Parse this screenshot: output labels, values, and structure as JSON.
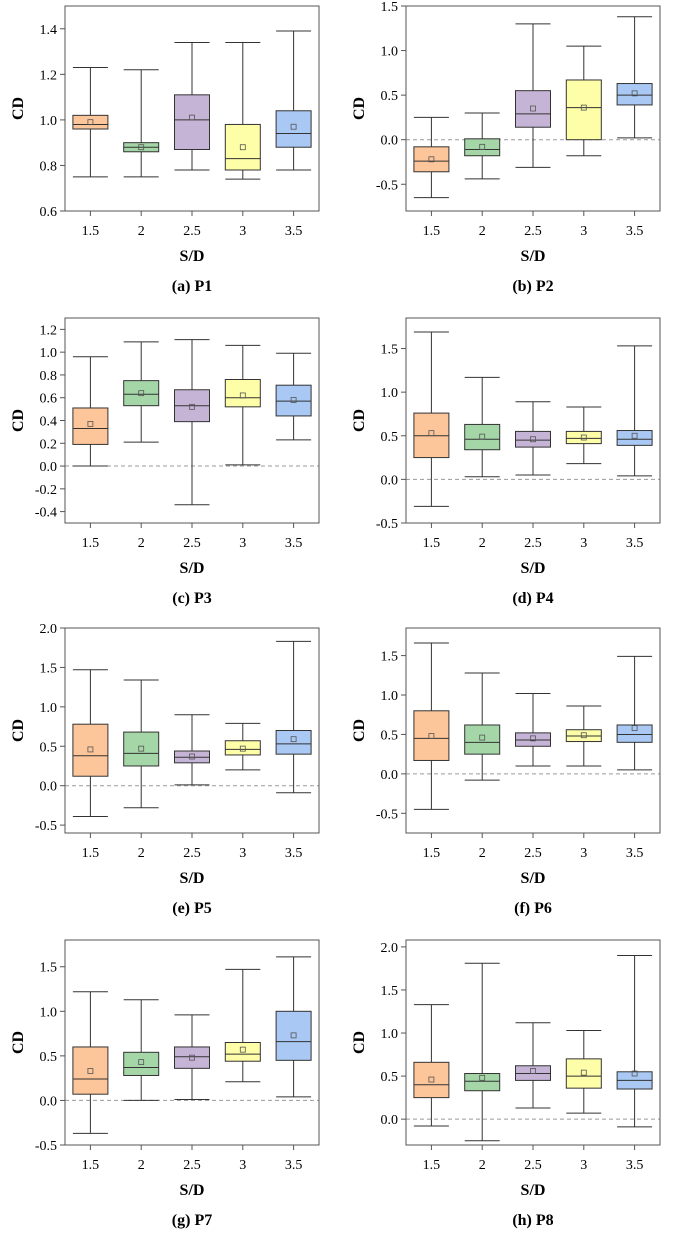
{
  "colors": [
    "#FDC59A",
    "#A5D6A7",
    "#C6B4D6",
    "#FEFEA8",
    "#A9C8F3"
  ],
  "chart_data": [
    {
      "type": "box",
      "title": "",
      "caption": "(a) P1",
      "xlabel": "S/D",
      "ylabel": "CD",
      "categories": [
        "1.5",
        "2",
        "2.5",
        "3",
        "3.5"
      ],
      "ylim": [
        0.6,
        1.5
      ],
      "yticks": [
        0.6,
        0.8,
        1.0,
        1.2,
        1.4
      ],
      "ytick_labels": [
        "0.6",
        "0.8",
        "1.0",
        "1.2",
        "1.4"
      ],
      "zero_line": false,
      "boxes": [
        {
          "min": 0.75,
          "q1": 0.96,
          "median": 0.98,
          "q3": 1.02,
          "max": 1.23,
          "mean": 0.99
        },
        {
          "min": 0.75,
          "q1": 0.86,
          "median": 0.88,
          "q3": 0.9,
          "max": 1.22,
          "mean": 0.88
        },
        {
          "min": 0.78,
          "q1": 0.87,
          "median": 1.0,
          "q3": 1.11,
          "max": 1.34,
          "mean": 1.01
        },
        {
          "min": 0.74,
          "q1": 0.78,
          "median": 0.83,
          "q3": 0.98,
          "max": 1.34,
          "mean": 0.88
        },
        {
          "min": 0.78,
          "q1": 0.88,
          "median": 0.94,
          "q3": 1.04,
          "max": 1.39,
          "mean": 0.97
        }
      ]
    },
    {
      "type": "box",
      "title": "",
      "caption": "(b) P2",
      "xlabel": "S/D",
      "ylabel": "CD",
      "categories": [
        "1.5",
        "2",
        "2.5",
        "3",
        "3.5"
      ],
      "ylim": [
        -0.8,
        1.5
      ],
      "yticks": [
        -0.5,
        0.0,
        0.5,
        1.0,
        1.5
      ],
      "ytick_labels": [
        "-0.5",
        "0.0",
        "0.5",
        "1.0",
        "1.5"
      ],
      "zero_line": true,
      "boxes": [
        {
          "min": -0.65,
          "q1": -0.36,
          "median": -0.24,
          "q3": -0.08,
          "max": 0.25,
          "mean": -0.22
        },
        {
          "min": -0.44,
          "q1": -0.18,
          "median": -0.11,
          "q3": 0.01,
          "max": 0.3,
          "mean": -0.08
        },
        {
          "min": -0.31,
          "q1": 0.14,
          "median": 0.29,
          "q3": 0.55,
          "max": 1.3,
          "mean": 0.35
        },
        {
          "min": -0.18,
          "q1": 0.0,
          "median": 0.36,
          "q3": 0.67,
          "max": 1.05,
          "mean": 0.36
        },
        {
          "min": 0.02,
          "q1": 0.39,
          "median": 0.5,
          "q3": 0.63,
          "max": 1.38,
          "mean": 0.52
        }
      ]
    },
    {
      "type": "box",
      "title": "",
      "caption": "(c) P3",
      "xlabel": "S/D",
      "ylabel": "CD",
      "categories": [
        "1.5",
        "2",
        "2.5",
        "3",
        "3.5"
      ],
      "ylim": [
        -0.5,
        1.3
      ],
      "yticks": [
        -0.4,
        -0.2,
        0.0,
        0.2,
        0.4,
        0.6,
        0.8,
        1.0,
        1.2
      ],
      "ytick_labels": [
        "-0.4",
        "-0.2",
        "0.0",
        "0.2",
        "0.4",
        "0.6",
        "0.8",
        "1.0",
        "1.2"
      ],
      "zero_line": true,
      "boxes": [
        {
          "min": 0.0,
          "q1": 0.19,
          "median": 0.33,
          "q3": 0.51,
          "max": 0.96,
          "mean": 0.37
        },
        {
          "min": 0.21,
          "q1": 0.53,
          "median": 0.63,
          "q3": 0.75,
          "max": 1.09,
          "mean": 0.64
        },
        {
          "min": -0.34,
          "q1": 0.39,
          "median": 0.53,
          "q3": 0.67,
          "max": 1.11,
          "mean": 0.52
        },
        {
          "min": 0.01,
          "q1": 0.52,
          "median": 0.6,
          "q3": 0.76,
          "max": 1.06,
          "mean": 0.62
        },
        {
          "min": 0.23,
          "q1": 0.44,
          "median": 0.57,
          "q3": 0.71,
          "max": 0.99,
          "mean": 0.58
        }
      ]
    },
    {
      "type": "box",
      "title": "",
      "caption": "(d) P4",
      "xlabel": "S/D",
      "ylabel": "CD",
      "categories": [
        "1.5",
        "2",
        "2.5",
        "3",
        "3.5"
      ],
      "ylim": [
        -0.5,
        1.85
      ],
      "yticks": [
        -0.5,
        0.0,
        0.5,
        1.0,
        1.5
      ],
      "ytick_labels": [
        "-0.5",
        "0.0",
        "0.5",
        "1.0",
        "1.5"
      ],
      "zero_line": true,
      "boxes": [
        {
          "min": -0.31,
          "q1": 0.25,
          "median": 0.5,
          "q3": 0.76,
          "max": 1.69,
          "mean": 0.53
        },
        {
          "min": 0.03,
          "q1": 0.34,
          "median": 0.46,
          "q3": 0.63,
          "max": 1.17,
          "mean": 0.49
        },
        {
          "min": 0.05,
          "q1": 0.37,
          "median": 0.45,
          "q3": 0.55,
          "max": 0.89,
          "mean": 0.46
        },
        {
          "min": 0.18,
          "q1": 0.41,
          "median": 0.47,
          "q3": 0.55,
          "max": 0.83,
          "mean": 0.48
        },
        {
          "min": 0.04,
          "q1": 0.39,
          "median": 0.46,
          "q3": 0.56,
          "max": 1.53,
          "mean": 0.5
        }
      ]
    },
    {
      "type": "box",
      "title": "",
      "caption": "(e) P5",
      "xlabel": "S/D",
      "ylabel": "CD",
      "categories": [
        "1.5",
        "2",
        "2.5",
        "3",
        "3.5"
      ],
      "ylim": [
        -0.6,
        2.0
      ],
      "yticks": [
        -0.5,
        0.0,
        0.5,
        1.0,
        1.5,
        2.0
      ],
      "ytick_labels": [
        "-0.5",
        "0.0",
        "0.5",
        "1.0",
        "1.5",
        "2.0"
      ],
      "zero_line": true,
      "boxes": [
        {
          "min": -0.39,
          "q1": 0.12,
          "median": 0.38,
          "q3": 0.78,
          "max": 1.47,
          "mean": 0.46
        },
        {
          "min": -0.28,
          "q1": 0.25,
          "median": 0.41,
          "q3": 0.68,
          "max": 1.34,
          "mean": 0.47
        },
        {
          "min": 0.01,
          "q1": 0.29,
          "median": 0.36,
          "q3": 0.44,
          "max": 0.9,
          "mean": 0.37
        },
        {
          "min": 0.2,
          "q1": 0.39,
          "median": 0.46,
          "q3": 0.57,
          "max": 0.79,
          "mean": 0.47
        },
        {
          "min": -0.09,
          "q1": 0.4,
          "median": 0.53,
          "q3": 0.7,
          "max": 1.83,
          "mean": 0.59
        }
      ]
    },
    {
      "type": "box",
      "title": "",
      "caption": "(f) P6",
      "xlabel": "S/D",
      "ylabel": "CD",
      "categories": [
        "1.5",
        "2",
        "2.5",
        "3",
        "3.5"
      ],
      "ylim": [
        -0.75,
        1.85
      ],
      "yticks": [
        -0.5,
        0.0,
        0.5,
        1.0,
        1.5
      ],
      "ytick_labels": [
        "-0.5",
        "0.0",
        "0.5",
        "1.0",
        "1.5"
      ],
      "zero_line": true,
      "boxes": [
        {
          "min": -0.45,
          "q1": 0.17,
          "median": 0.45,
          "q3": 0.8,
          "max": 1.66,
          "mean": 0.48
        },
        {
          "min": -0.08,
          "q1": 0.25,
          "median": 0.4,
          "q3": 0.62,
          "max": 1.28,
          "mean": 0.46
        },
        {
          "min": 0.1,
          "q1": 0.35,
          "median": 0.43,
          "q3": 0.52,
          "max": 1.02,
          "mean": 0.45
        },
        {
          "min": 0.1,
          "q1": 0.41,
          "median": 0.48,
          "q3": 0.56,
          "max": 0.86,
          "mean": 0.49
        },
        {
          "min": 0.05,
          "q1": 0.4,
          "median": 0.5,
          "q3": 0.62,
          "max": 1.49,
          "mean": 0.58
        }
      ]
    },
    {
      "type": "box",
      "title": "",
      "caption": "(g) P7",
      "xlabel": "S/D",
      "ylabel": "CD",
      "categories": [
        "1.5",
        "2",
        "2.5",
        "3",
        "3.5"
      ],
      "ylim": [
        -0.5,
        1.8
      ],
      "yticks": [
        -0.5,
        0.0,
        0.5,
        1.0,
        1.5
      ],
      "ytick_labels": [
        "-0.5",
        "0.0",
        "0.5",
        "1.0",
        "1.5"
      ],
      "zero_line": true,
      "boxes": [
        {
          "min": -0.37,
          "q1": 0.07,
          "median": 0.24,
          "q3": 0.6,
          "max": 1.22,
          "mean": 0.33
        },
        {
          "min": 0.0,
          "q1": 0.28,
          "median": 0.37,
          "q3": 0.54,
          "max": 1.13,
          "mean": 0.43
        },
        {
          "min": 0.01,
          "q1": 0.36,
          "median": 0.49,
          "q3": 0.6,
          "max": 0.96,
          "mean": 0.48
        },
        {
          "min": 0.21,
          "q1": 0.44,
          "median": 0.52,
          "q3": 0.65,
          "max": 1.47,
          "mean": 0.57
        },
        {
          "min": 0.04,
          "q1": 0.45,
          "median": 0.66,
          "q3": 1.0,
          "max": 1.61,
          "mean": 0.73
        }
      ]
    },
    {
      "type": "box",
      "title": "",
      "caption": "(h) P8",
      "xlabel": "S/D",
      "ylabel": "CD",
      "categories": [
        "1.5",
        "2",
        "2.5",
        "3",
        "3.5"
      ],
      "ylim": [
        -0.3,
        2.08
      ],
      "yticks": [
        0.0,
        0.5,
        1.0,
        1.5,
        2.0
      ],
      "ytick_labels": [
        "0.0",
        "0.5",
        "1.0",
        "1.5",
        "2.0"
      ],
      "zero_line": true,
      "boxes": [
        {
          "min": -0.08,
          "q1": 0.25,
          "median": 0.4,
          "q3": 0.66,
          "max": 1.33,
          "mean": 0.46
        },
        {
          "min": -0.25,
          "q1": 0.33,
          "median": 0.44,
          "q3": 0.53,
          "max": 1.81,
          "mean": 0.48
        },
        {
          "min": 0.13,
          "q1": 0.45,
          "median": 0.53,
          "q3": 0.62,
          "max": 1.12,
          "mean": 0.56
        },
        {
          "min": 0.07,
          "q1": 0.36,
          "median": 0.5,
          "q3": 0.7,
          "max": 1.03,
          "mean": 0.54
        },
        {
          "min": -0.09,
          "q1": 0.35,
          "median": 0.45,
          "q3": 0.55,
          "max": 1.9,
          "mean": 0.53
        }
      ]
    }
  ]
}
